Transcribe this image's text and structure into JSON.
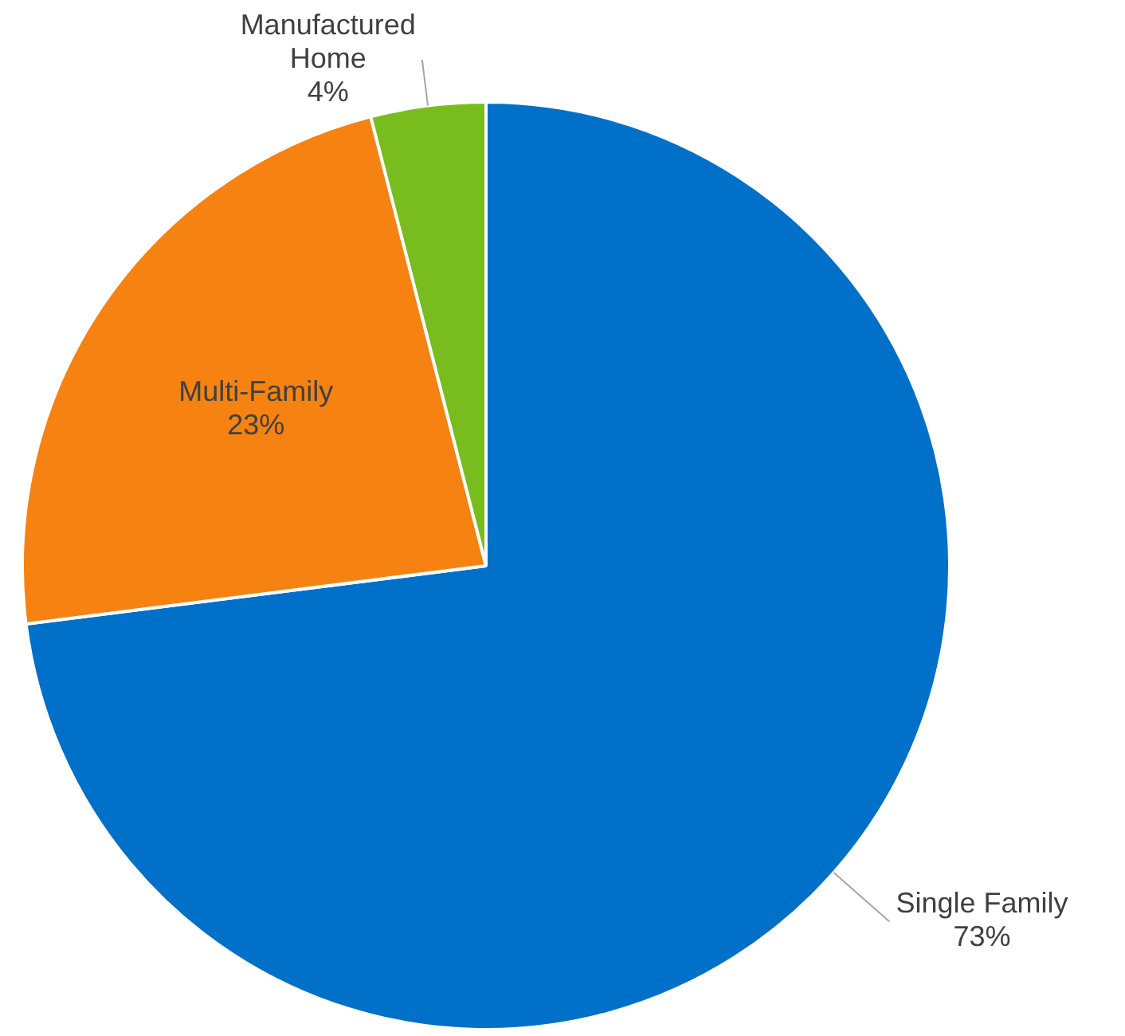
{
  "chart_data": {
    "type": "pie",
    "categories": [
      "Single Family",
      "Multi-Family",
      "Manufactured Home"
    ],
    "values": [
      73,
      23,
      4
    ],
    "colors": [
      "#0070c9",
      "#f68212",
      "#78bc1e"
    ],
    "value_labels": [
      "73%",
      "23%",
      "4%"
    ],
    "legend": false
  }
}
